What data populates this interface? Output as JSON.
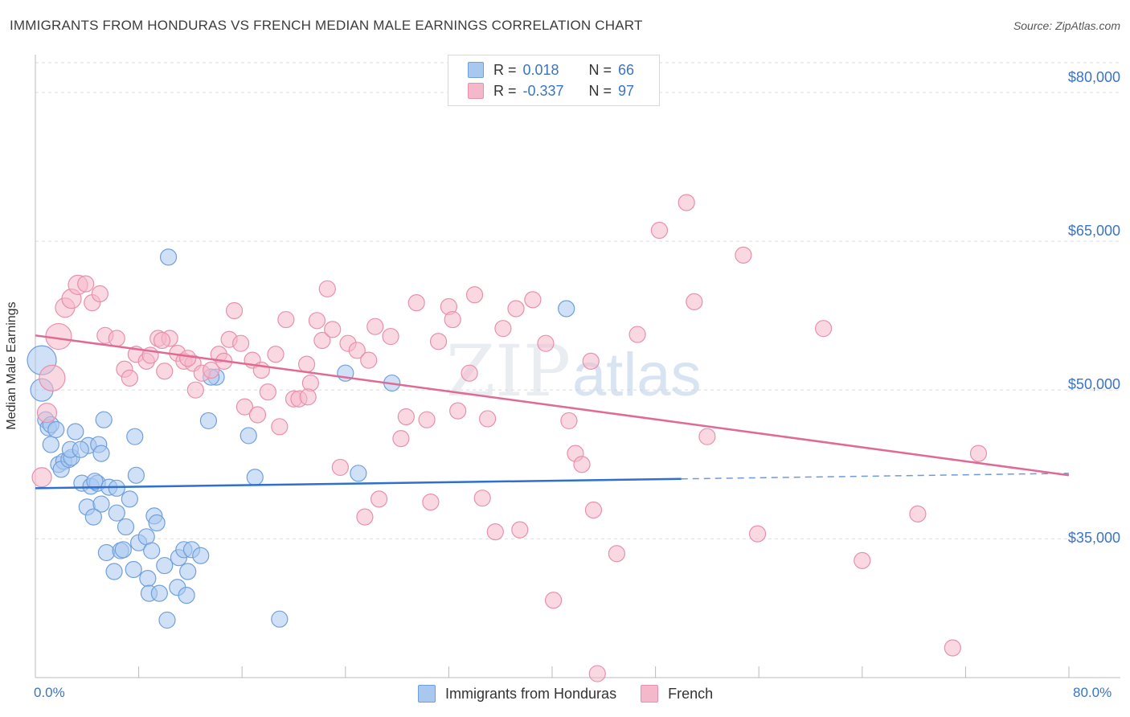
{
  "header": {
    "title": "IMMIGRANTS FROM HONDURAS VS FRENCH MEDIAN MALE EARNINGS CORRELATION CHART",
    "source": "Source: ZipAtlas.com"
  },
  "watermark": {
    "zip": "ZIP",
    "atlas": "atlas"
  },
  "legend": {
    "r_label": "R =",
    "n_label": "N =",
    "series": [
      {
        "r": "0.018",
        "n": "66",
        "color": "#a9c8f0"
      },
      {
        "r": "-0.337",
        "n": "97",
        "color": "#f5b8cb"
      }
    ]
  },
  "bottom_legend": [
    "Immigrants from Honduras",
    "French"
  ],
  "colors": {
    "blue_fill": "#a9c8f0",
    "blue_stroke": "#6f9fdc",
    "blue_line": "#2f6fcf",
    "pink_fill": "#f5b8cb",
    "pink_stroke": "#e890ab",
    "pink_line": "#e06a93",
    "tick_text": "#3a74c4",
    "grid": "#dcdcdc"
  },
  "chart_data": {
    "type": "scatter",
    "title": "IMMIGRANTS FROM HONDURAS VS FRENCH MEDIAN MALE EARNINGS CORRELATION CHART",
    "xlabel": "",
    "ylabel": "Median Male Earnings",
    "xlim": [
      0,
      80
    ],
    "ylim": [
      21000,
      83000
    ],
    "x_tick_labels": [
      "0.0%",
      "80.0%"
    ],
    "y_ticks": [
      35000,
      50000,
      65000,
      80000
    ],
    "y_tick_labels": [
      "$35,000",
      "$50,000",
      "$65,000",
      "$80,000"
    ],
    "grid": true,
    "legend_position": "top-center",
    "series": [
      {
        "name": "Immigrants from Honduras",
        "r": 0.018,
        "n": 66,
        "trend": {
          "x0": 0,
          "y0": 40100,
          "x1": 80,
          "y1": 41600,
          "solid_until_x": 50
        },
        "points": [
          [
            0.5,
            53000,
            18
          ],
          [
            0.5,
            50000,
            14
          ],
          [
            0.8,
            47000,
            10
          ],
          [
            1.0,
            46200,
            10
          ],
          [
            1.2,
            46500,
            10
          ],
          [
            1.6,
            46000,
            10
          ],
          [
            1.2,
            44500,
            10
          ],
          [
            1.8,
            42500,
            10
          ],
          [
            2.2,
            42800,
            10
          ],
          [
            2.0,
            42000,
            10
          ],
          [
            2.6,
            43000,
            10
          ],
          [
            2.8,
            43200,
            10
          ],
          [
            2.7,
            44000,
            10
          ],
          [
            3.1,
            45800,
            10
          ],
          [
            4.1,
            44400,
            10
          ],
          [
            3.5,
            44000,
            10
          ],
          [
            4.9,
            44500,
            10
          ],
          [
            5.1,
            43600,
            10
          ],
          [
            5.3,
            47000,
            10
          ],
          [
            7.7,
            45300,
            10
          ],
          [
            3.6,
            40600,
            10
          ],
          [
            4.3,
            40300,
            10
          ],
          [
            4.8,
            40600,
            10
          ],
          [
            5.7,
            40200,
            10
          ],
          [
            7.8,
            41400,
            10
          ],
          [
            4.0,
            38200,
            10
          ],
          [
            5.1,
            38500,
            10
          ],
          [
            4.5,
            37200,
            10
          ],
          [
            6.3,
            37600,
            10
          ],
          [
            7.3,
            39000,
            10
          ],
          [
            7.0,
            36200,
            10
          ],
          [
            9.2,
            37300,
            10
          ],
          [
            9.4,
            36600,
            10
          ],
          [
            8.0,
            34600,
            10
          ],
          [
            8.6,
            35200,
            10
          ],
          [
            5.5,
            33600,
            10
          ],
          [
            6.6,
            33800,
            10
          ],
          [
            6.8,
            33900,
            10
          ],
          [
            9.0,
            33800,
            10
          ],
          [
            11.1,
            33100,
            10
          ],
          [
            11.5,
            33900,
            10
          ],
          [
            12.1,
            33900,
            10
          ],
          [
            12.8,
            33300,
            10
          ],
          [
            8.7,
            31000,
            10
          ],
          [
            7.6,
            31900,
            10
          ],
          [
            6.1,
            31700,
            10
          ],
          [
            10.0,
            32300,
            10
          ],
          [
            11.8,
            31700,
            10
          ],
          [
            8.8,
            29500,
            10
          ],
          [
            9.6,
            29500,
            10
          ],
          [
            11.0,
            30100,
            10
          ],
          [
            11.7,
            29300,
            10
          ],
          [
            10.2,
            26800,
            10
          ],
          [
            18.9,
            26900,
            10
          ],
          [
            10.3,
            63400,
            10
          ],
          [
            13.4,
            46900,
            10
          ],
          [
            14.0,
            51300,
            10
          ],
          [
            16.5,
            45400,
            10
          ],
          [
            17.0,
            41200,
            10
          ],
          [
            24.0,
            51700,
            10
          ],
          [
            25.0,
            41600,
            10
          ],
          [
            27.6,
            50700,
            10
          ],
          [
            41.1,
            58200,
            10
          ],
          [
            13.6,
            51300,
            10
          ],
          [
            6.3,
            40100,
            10
          ],
          [
            4.6,
            40800,
            10
          ]
        ]
      },
      {
        "name": "French",
        "r": -0.337,
        "n": 97,
        "trend": {
          "x0": 0,
          "y0": 55500,
          "x1": 80,
          "y1": 41400
        },
        "points": [
          [
            0.5,
            41200,
            12
          ],
          [
            0.9,
            47700,
            12
          ],
          [
            1.3,
            51200,
            16
          ],
          [
            1.8,
            55400,
            16
          ],
          [
            2.3,
            58300,
            12
          ],
          [
            2.8,
            59200,
            12
          ],
          [
            3.3,
            60600,
            12
          ],
          [
            3.9,
            60700,
            10
          ],
          [
            4.4,
            58800,
            10
          ],
          [
            5.0,
            59700,
            10
          ],
          [
            5.4,
            55500,
            10
          ],
          [
            6.3,
            55200,
            10
          ],
          [
            6.9,
            52100,
            10
          ],
          [
            7.3,
            51200,
            10
          ],
          [
            7.8,
            53600,
            10
          ],
          [
            8.6,
            52900,
            10
          ],
          [
            8.9,
            53500,
            10
          ],
          [
            9.5,
            55200,
            10
          ],
          [
            10.4,
            55200,
            10
          ],
          [
            10.0,
            51900,
            10
          ],
          [
            11.0,
            53700,
            10
          ],
          [
            11.5,
            52900,
            10
          ],
          [
            12.2,
            52700,
            10
          ],
          [
            12.4,
            50000,
            10
          ],
          [
            12.9,
            51700,
            10
          ],
          [
            13.6,
            52000,
            10
          ],
          [
            14.2,
            53600,
            10
          ],
          [
            14.6,
            52900,
            10
          ],
          [
            15.0,
            55100,
            10
          ],
          [
            15.4,
            58000,
            10
          ],
          [
            15.9,
            54700,
            10
          ],
          [
            16.2,
            48300,
            10
          ],
          [
            16.8,
            53000,
            10
          ],
          [
            17.2,
            47500,
            10
          ],
          [
            17.5,
            52000,
            10
          ],
          [
            18.0,
            49800,
            10
          ],
          [
            18.6,
            53600,
            10
          ],
          [
            18.9,
            46300,
            10
          ],
          [
            19.4,
            57100,
            10
          ],
          [
            20.0,
            49100,
            10
          ],
          [
            20.4,
            49100,
            10
          ],
          [
            21.0,
            52600,
            10
          ],
          [
            21.3,
            50700,
            10
          ],
          [
            21.8,
            57000,
            10
          ],
          [
            22.2,
            55000,
            10
          ],
          [
            22.6,
            60200,
            10
          ],
          [
            23.0,
            56100,
            10
          ],
          [
            23.6,
            42200,
            10
          ],
          [
            24.2,
            54700,
            10
          ],
          [
            24.9,
            54000,
            10
          ],
          [
            25.5,
            37200,
            10
          ],
          [
            25.8,
            53000,
            10
          ],
          [
            26.3,
            56400,
            10
          ],
          [
            26.6,
            39000,
            10
          ],
          [
            27.5,
            55400,
            10
          ],
          [
            28.3,
            45100,
            10
          ],
          [
            28.7,
            47300,
            10
          ],
          [
            29.5,
            58800,
            10
          ],
          [
            30.3,
            47000,
            10
          ],
          [
            30.6,
            38700,
            10
          ],
          [
            31.2,
            54900,
            10
          ],
          [
            32.0,
            58400,
            10
          ],
          [
            32.3,
            57100,
            10
          ],
          [
            32.7,
            47900,
            10
          ],
          [
            33.6,
            51700,
            10
          ],
          [
            34.0,
            59600,
            10
          ],
          [
            34.6,
            39100,
            10
          ],
          [
            35.0,
            47100,
            10
          ],
          [
            35.6,
            35700,
            10
          ],
          [
            36.2,
            56200,
            10
          ],
          [
            37.2,
            58200,
            10
          ],
          [
            37.5,
            35900,
            10
          ],
          [
            38.5,
            59100,
            10
          ],
          [
            39.5,
            54700,
            10
          ],
          [
            40.1,
            28800,
            10
          ],
          [
            41.3,
            46900,
            10
          ],
          [
            41.8,
            43600,
            10
          ],
          [
            42.3,
            42500,
            10
          ],
          [
            43.0,
            52900,
            10
          ],
          [
            43.2,
            37900,
            10
          ],
          [
            43.5,
            21400,
            10
          ],
          [
            45.0,
            33500,
            10
          ],
          [
            46.6,
            55600,
            10
          ],
          [
            48.3,
            66100,
            10
          ],
          [
            50.4,
            68900,
            10
          ],
          [
            51.0,
            58900,
            10
          ],
          [
            52.0,
            45300,
            10
          ],
          [
            54.8,
            63600,
            10
          ],
          [
            55.9,
            35500,
            10
          ],
          [
            61.0,
            56200,
            10
          ],
          [
            64.0,
            32800,
            10
          ],
          [
            68.3,
            37500,
            10
          ],
          [
            71.0,
            24000,
            10
          ],
          [
            73.0,
            43600,
            10
          ],
          [
            21.1,
            49300,
            10
          ],
          [
            11.8,
            53200,
            10
          ],
          [
            9.8,
            55000,
            10
          ]
        ]
      }
    ]
  }
}
